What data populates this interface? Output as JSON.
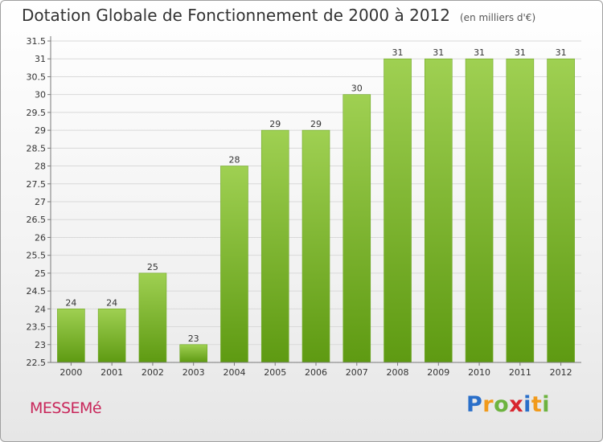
{
  "header": {
    "title": "Dotation Globale de Fonctionnement de 2000 à 2012",
    "subtitle": "(en milliers d'€)"
  },
  "commune": "MESSEMé",
  "logo": {
    "text": "Proxiti",
    "colors": [
      "#2a6fc9",
      "#f19a1b",
      "#6db33f",
      "#d8262e",
      "#2a6fc9",
      "#f19a1b",
      "#6db33f"
    ]
  },
  "chart_data": {
    "type": "bar",
    "title": "Dotation Globale de Fonctionnement de 2000 à 2012",
    "subtitle": "(en milliers d'€)",
    "categories": [
      "2000",
      "2001",
      "2002",
      "2003",
      "2004",
      "2005",
      "2006",
      "2007",
      "2008",
      "2009",
      "2010",
      "2011",
      "2012"
    ],
    "values": [
      24,
      24,
      25,
      23,
      28,
      29,
      29,
      30,
      31,
      31,
      31,
      31,
      31
    ],
    "data_labels": [
      "24",
      "24",
      "25",
      "23",
      "28",
      "29",
      "29",
      "30",
      "31",
      "31",
      "31",
      "31",
      "31"
    ],
    "ylim": [
      22.5,
      31.5
    ],
    "yticks": [
      "22.5",
      "23",
      "23.5",
      "24",
      "24.5",
      "25",
      "25.5",
      "26",
      "26.5",
      "27",
      "27.5",
      "28",
      "28.5",
      "29",
      "29.5",
      "30",
      "30.5",
      "31",
      "31.5"
    ],
    "xlabel": "",
    "ylabel": "",
    "grid": true,
    "legend": "none",
    "colors": {
      "bar_top": "#9fd052",
      "bar_bottom": "#5e9a12",
      "grid": "#d9d9d9",
      "axis": "#7a7a7a"
    }
  }
}
